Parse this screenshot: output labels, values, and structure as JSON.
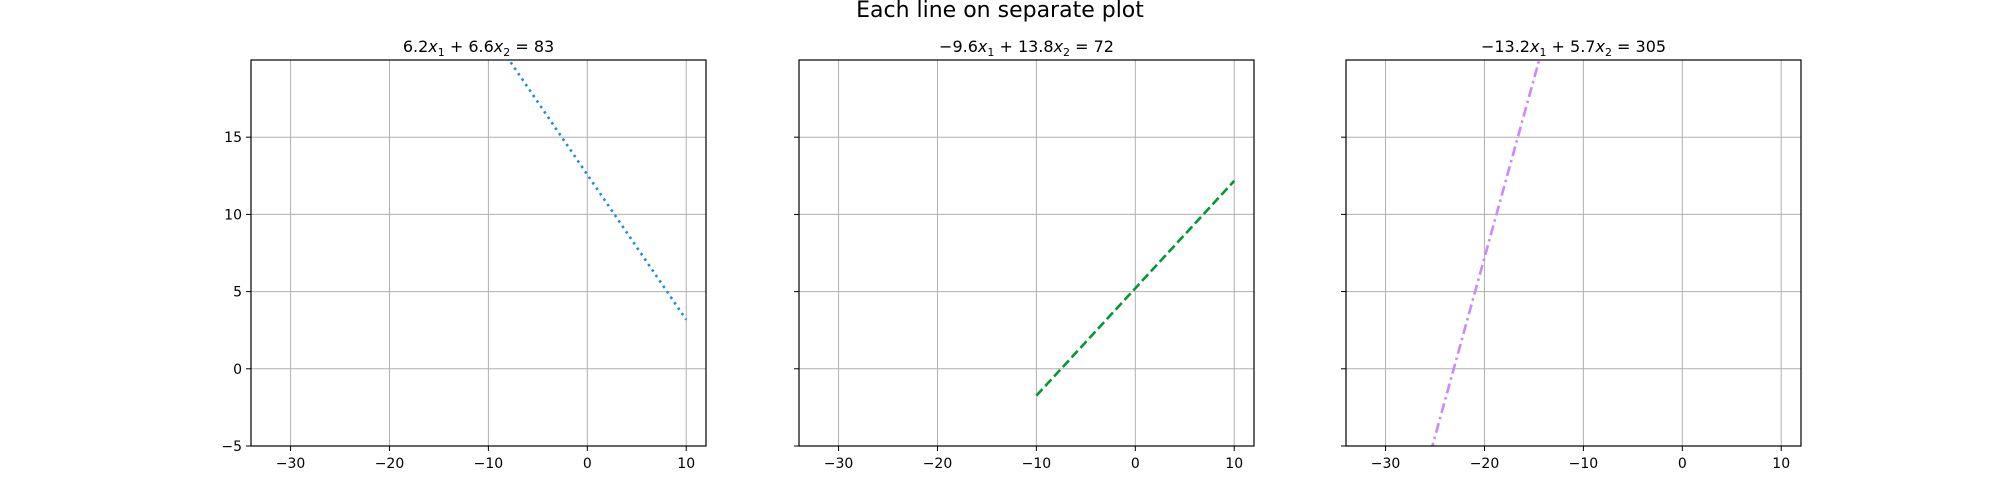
{
  "figure": {
    "suptitle": "Each line on separate plot"
  },
  "chart_data": [
    {
      "type": "line",
      "title_parts": [
        "6.2",
        "x",
        "1",
        " + 6.6",
        "x",
        "2",
        " = 83"
      ],
      "equation": {
        "a": 6.2,
        "b": 6.6,
        "c": 83
      },
      "xlim": [
        -34,
        12
      ],
      "ylim": [
        -5,
        20
      ],
      "xticks": [
        -30,
        -20,
        -10,
        0,
        10
      ],
      "yticks": [
        -5,
        0,
        5,
        10,
        15
      ],
      "x": [
        -10,
        10
      ],
      "y": [
        21.97,
        3.18
      ],
      "color": "#1a8fd6",
      "linestyle": "dotted",
      "grid": true,
      "show_yticklabels": true
    },
    {
      "type": "line",
      "title_parts": [
        "−9.6",
        "x",
        "1",
        " + 13.8",
        "x",
        "2",
        " = 72"
      ],
      "equation": {
        "a": -9.6,
        "b": 13.8,
        "c": 72
      },
      "xlim": [
        -34,
        12
      ],
      "ylim": [
        -5,
        20
      ],
      "xticks": [
        -30,
        -20,
        -10,
        0,
        10
      ],
      "yticks": [
        -5,
        0,
        5,
        10,
        15
      ],
      "x": [
        -10,
        10
      ],
      "y": [
        -1.74,
        12.17
      ],
      "color": "#009933",
      "linestyle": "dashed",
      "grid": true,
      "show_yticklabels": false
    },
    {
      "type": "line",
      "title_parts": [
        "−13.2",
        "x",
        "1",
        " + 5.7",
        "x",
        "2",
        " = 305"
      ],
      "equation": {
        "a": -13.2,
        "b": 5.7,
        "c": 305
      },
      "xlim": [
        -34,
        12
      ],
      "ylim": [
        -5,
        20
      ],
      "xticks": [
        -30,
        -20,
        -10,
        0,
        10
      ],
      "yticks": [
        -5,
        0,
        5,
        10,
        15
      ],
      "x": [
        -26,
        -14
      ],
      "y": [
        -6.7,
        21.09
      ],
      "color": "#cc88ff",
      "linestyle": "dashdot",
      "grid": true,
      "show_yticklabels": false
    }
  ]
}
